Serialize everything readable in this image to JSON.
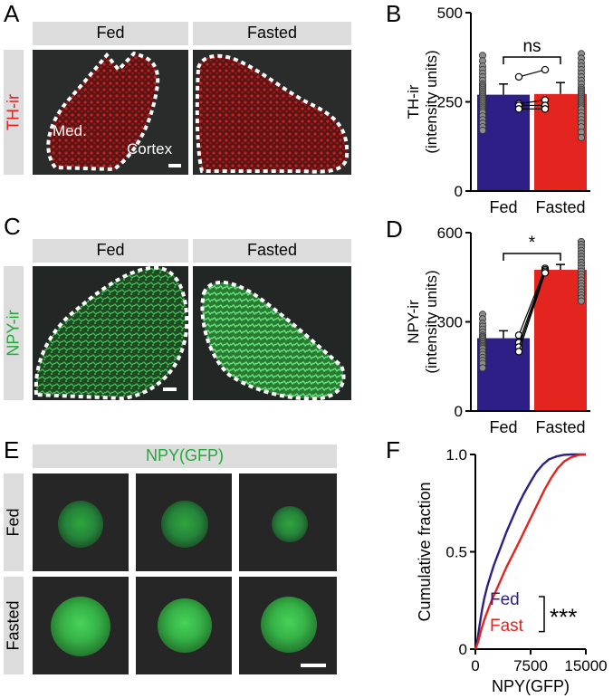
{
  "panels": {
    "A": {
      "letter": "A",
      "col_labels": [
        "Fed",
        "Fasted"
      ],
      "row_label": "TH-ir",
      "annotations": [
        "Med.",
        "Cortex"
      ],
      "color": "#e02020"
    },
    "C": {
      "letter": "C",
      "col_labels": [
        "Fed",
        "Fasted"
      ],
      "row_label": "NPY-ir",
      "color": "#22a93a"
    },
    "E": {
      "letter": "E",
      "header": "NPY(GFP)",
      "row_labels": [
        "Fed",
        "Fasted"
      ],
      "header_color": "#22a93a"
    },
    "B": {
      "letter": "B"
    },
    "D": {
      "letter": "D"
    },
    "F": {
      "letter": "F"
    }
  },
  "colors": {
    "fed": "#2e1f87",
    "fasted": "#e3241f",
    "point": "#8c8c8c",
    "header_bg": "#dcdcdc"
  },
  "chart_data": [
    {
      "id": "B",
      "type": "bar",
      "categories": [
        "Fed",
        "Fasted"
      ],
      "values": [
        270,
        272
      ],
      "ylabel": "TH-ir (intensity units)",
      "ylabel_lines": [
        "TH-ir",
        "(intensity units)"
      ],
      "ylim": [
        0,
        500
      ],
      "yticks": [
        0,
        250,
        500
      ],
      "significance": "ns",
      "points": {
        "Fed": [
          380,
          365,
          350,
          340,
          330,
          320,
          310,
          300,
          295,
          290,
          285,
          280,
          275,
          270,
          265,
          260,
          255,
          250,
          245,
          240,
          235,
          230,
          225,
          220,
          210,
          200,
          190,
          180,
          170
        ],
        "Fasted": [
          385,
          372,
          360,
          350,
          340,
          330,
          320,
          310,
          300,
          290,
          285,
          280,
          275,
          270,
          265,
          260,
          255,
          250,
          245,
          240,
          235,
          230,
          220,
          210,
          200,
          190,
          180,
          165,
          150
        ]
      },
      "paired": [
        [
          320,
          340
        ],
        [
          245,
          255
        ],
        [
          240,
          240
        ],
        [
          230,
          230
        ]
      ]
    },
    {
      "id": "D",
      "type": "bar",
      "categories": [
        "Fed",
        "Fasted"
      ],
      "values": [
        245,
        475
      ],
      "ylabel": "NPY-ir (intensity units)",
      "ylabel_lines": [
        "NPY-ir",
        "(intensity units)"
      ],
      "ylim": [
        0,
        600
      ],
      "yticks": [
        0,
        300,
        600
      ],
      "significance": "*",
      "points": {
        "Fed": [
          325,
          310,
          295,
          285,
          275,
          265,
          255,
          250,
          245,
          240,
          235,
          230,
          225,
          220,
          215,
          210,
          200,
          190,
          180,
          170,
          160,
          145
        ],
        "Fasted": [
          570,
          560,
          550,
          540,
          530,
          520,
          510,
          500,
          490,
          480,
          470,
          460,
          450,
          440,
          430,
          420,
          410,
          400,
          390,
          380,
          370
        ]
      },
      "paired": [
        [
          255,
          480
        ],
        [
          230,
          475
        ],
        [
          215,
          470
        ],
        [
          200,
          465
        ]
      ]
    },
    {
      "id": "F",
      "type": "line",
      "xlabel": "NPY(GFP)",
      "ylabel": "Cumulative fraction",
      "xlim": [
        0,
        15000
      ],
      "ylim": [
        0,
        1
      ],
      "xticks": [
        0,
        7500,
        15000
      ],
      "yticks": [
        0,
        0.5,
        1.0
      ],
      "ytick_labels": [
        "0",
        "0.5",
        "1.0"
      ],
      "significance": "***",
      "series": [
        {
          "name": "Fed",
          "x": [
            0,
            300,
            600,
            900,
            1200,
            1600,
            2000,
            2500,
            3000,
            3600,
            4200,
            5000,
            5800,
            6600,
            7500,
            8300,
            9200,
            10000,
            11000,
            12000,
            13000,
            15000
          ],
          "y": [
            0,
            0.05,
            0.13,
            0.2,
            0.26,
            0.32,
            0.37,
            0.43,
            0.48,
            0.54,
            0.6,
            0.67,
            0.74,
            0.8,
            0.86,
            0.91,
            0.95,
            0.975,
            0.99,
            0.998,
            1.0,
            1.0
          ]
        },
        {
          "name": "Fast",
          "x": [
            0,
            400,
            800,
            1200,
            1700,
            2200,
            2800,
            3500,
            4200,
            5000,
            5800,
            6700,
            7600,
            8500,
            9400,
            10300,
            11200,
            12100,
            13000,
            14000,
            15000
          ],
          "y": [
            0,
            0.04,
            0.1,
            0.15,
            0.2,
            0.25,
            0.3,
            0.36,
            0.42,
            0.48,
            0.54,
            0.61,
            0.68,
            0.75,
            0.82,
            0.88,
            0.93,
            0.965,
            0.985,
            0.997,
            1.0
          ]
        }
      ]
    }
  ]
}
